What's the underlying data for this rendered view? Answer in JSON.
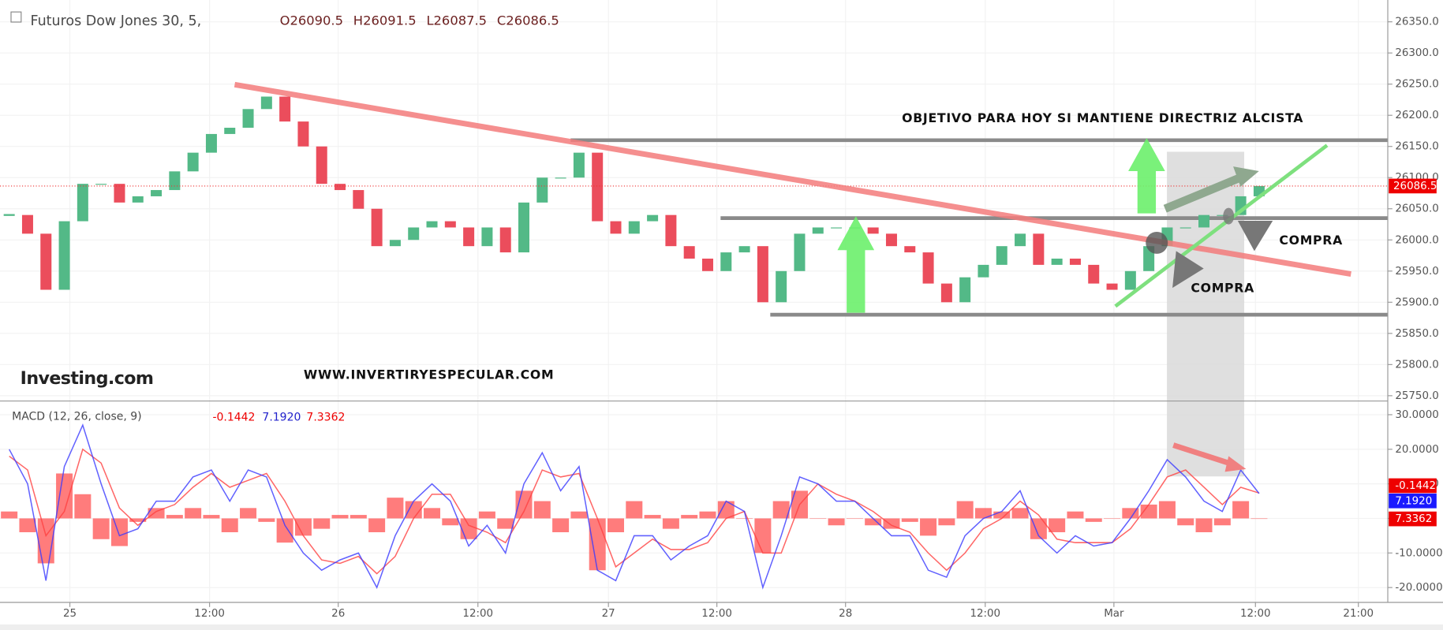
{
  "chart_data": {
    "type": "candlestick",
    "title": "Futuros Dow Jones 30, 5,",
    "ohlc_labels": [
      "O26090.5",
      "H26091.5",
      "L26087.5",
      "C26086.5"
    ],
    "watermark": "Investing.com",
    "website": "WWW.INVERTIRYESPECULAR.COM",
    "annotations": [
      "OBJETIVO PARA HOY SI MANTIENE DIRECTRIZ ALCISTA",
      "COMPRA",
      "COMPRA"
    ],
    "values": [
      26040,
      26010,
      25920,
      26030,
      26090,
      26090,
      26060,
      26070,
      26080,
      26110,
      26140,
      26170,
      26180,
      26210,
      26230,
      26190,
      26150,
      26090,
      26080,
      26050,
      25990,
      26000,
      26020,
      26030,
      26020,
      25990,
      26020,
      25980,
      26060,
      26100,
      26100,
      26140,
      26030,
      26010,
      26030,
      26040,
      25990,
      25970,
      25950,
      25980,
      25990,
      25900,
      25950,
      26010,
      26020,
      26020,
      26020,
      26010,
      25990,
      25980,
      25930,
      25900,
      25940,
      25960,
      25990,
      26010,
      25960,
      25970,
      25960,
      25930,
      25920,
      25950,
      25990,
      26020,
      26020,
      26040,
      26040,
      26070,
      26086.5
    ],
    "colors": {
      "up": "#53b987",
      "down": "#eb4d5c"
    },
    "levels": [
      26160,
      26035,
      25880
    ],
    "last_label": "26086.5",
    "ylim": [
      25743,
      26385
    ],
    "yticks": [
      {
        "value": 25750,
        "label": "25750.0"
      },
      {
        "value": 25800,
        "label": "25800.0"
      },
      {
        "value": 25850,
        "label": "25850.0"
      },
      {
        "value": 25900,
        "label": "25900.0"
      },
      {
        "value": 25950,
        "label": "25950.0"
      },
      {
        "value": 26000,
        "label": "26000.0"
      },
      {
        "value": 26050,
        "label": "26050.0"
      },
      {
        "value": 26100,
        "label": "26100.0"
      },
      {
        "value": 26150,
        "label": "26150.0"
      },
      {
        "value": 26200,
        "label": "26200.0"
      },
      {
        "value": 26250,
        "label": "26250.0"
      },
      {
        "value": 26300,
        "label": "26300.0"
      },
      {
        "value": 26350,
        "label": "26350.0"
      }
    ],
    "xlim": [
      0,
      75
    ],
    "xticks": [
      {
        "value": 3.3,
        "label": "25"
      },
      {
        "value": 10.9,
        "label": "12:00"
      },
      {
        "value": 17.9,
        "label": "26"
      },
      {
        "value": 25.5,
        "label": "12:00"
      },
      {
        "value": 32.6,
        "label": "27"
      },
      {
        "value": 38.5,
        "label": "12:00"
      },
      {
        "value": 45.5,
        "label": "28"
      },
      {
        "value": 53.1,
        "label": "12:00"
      },
      {
        "value": 60.1,
        "label": "Mar"
      },
      {
        "value": 67.8,
        "label": "12:00"
      },
      {
        "value": 73.4,
        "label": "21:00"
      }
    ],
    "macd": {
      "title": "MACD (12, 26, close, 9)",
      "value_labels": [
        "-0.1442",
        "7.1920",
        "7.3362"
      ],
      "ylim": [
        -24.3,
        33.7
      ],
      "yticks": [
        {
          "value": -20,
          "label": "-20.0000"
        },
        {
          "value": -10,
          "label": "-10.0000"
        },
        {
          "value": 0,
          "label": "0.0000"
        },
        {
          "value": 10,
          "label": "10.0000"
        },
        {
          "value": 20,
          "label": "20.0000"
        },
        {
          "value": 30,
          "label": "30.0000"
        }
      ],
      "series": [
        {
          "name": "MACD",
          "color": "#3a3aff",
          "values": [
            20,
            10,
            -18,
            15,
            27,
            10,
            -5,
            -3,
            5,
            5,
            12,
            14,
            5,
            14,
            12,
            -2,
            -10,
            -15,
            -12,
            -10,
            -20,
            -5,
            5,
            10,
            5,
            -8,
            -2,
            -10,
            10,
            19,
            8,
            15,
            -15,
            -18,
            -5,
            -5,
            -12,
            -8,
            -5,
            5,
            2,
            -20,
            -5,
            12,
            10,
            5,
            5,
            0,
            -5,
            -5,
            -15,
            -17,
            -5,
            0,
            2,
            8,
            -5,
            -10,
            -5,
            -8,
            -7,
            0,
            8,
            17,
            12,
            5,
            2,
            14,
            7.192
          ]
        },
        {
          "name": "Signal",
          "color": "#ff4040",
          "values": [
            18,
            14,
            -5,
            2,
            20,
            16,
            3,
            -2,
            2,
            4,
            9,
            13,
            9,
            11,
            13,
            5,
            -5,
            -12,
            -13,
            -11,
            -16,
            -11,
            0,
            7,
            7,
            -2,
            -4,
            -7,
            2,
            14,
            12,
            13,
            0,
            -14,
            -10,
            -6,
            -9,
            -9,
            -7,
            0,
            2,
            -10,
            -10,
            4,
            10,
            7,
            5,
            2,
            -2,
            -4,
            -10,
            -15,
            -10,
            -3,
            0,
            5,
            1,
            -6,
            -7,
            -7,
            -7,
            -3,
            4,
            12,
            14,
            9,
            4,
            9,
            7.3362
          ]
        },
        {
          "name": "Histogram",
          "color": "#ff5050",
          "values": [
            2,
            -4,
            -13,
            13,
            7,
            -6,
            -8,
            -1,
            3,
            1,
            3,
            1,
            -4,
            3,
            -1,
            -7,
            -5,
            -3,
            1,
            1,
            -4,
            6,
            5,
            3,
            -2,
            -6,
            2,
            -3,
            8,
            5,
            -4,
            2,
            -15,
            -4,
            5,
            1,
            -3,
            1,
            2,
            5,
            0,
            -10,
            5,
            8,
            0,
            -2,
            0,
            -2,
            -3,
            -1,
            -5,
            -2,
            5,
            3,
            2,
            3,
            -6,
            -4,
            2,
            -1,
            0,
            3,
            4,
            5,
            -2,
            -4,
            -2,
            5,
            -0.1442
          ]
        }
      ]
    }
  }
}
